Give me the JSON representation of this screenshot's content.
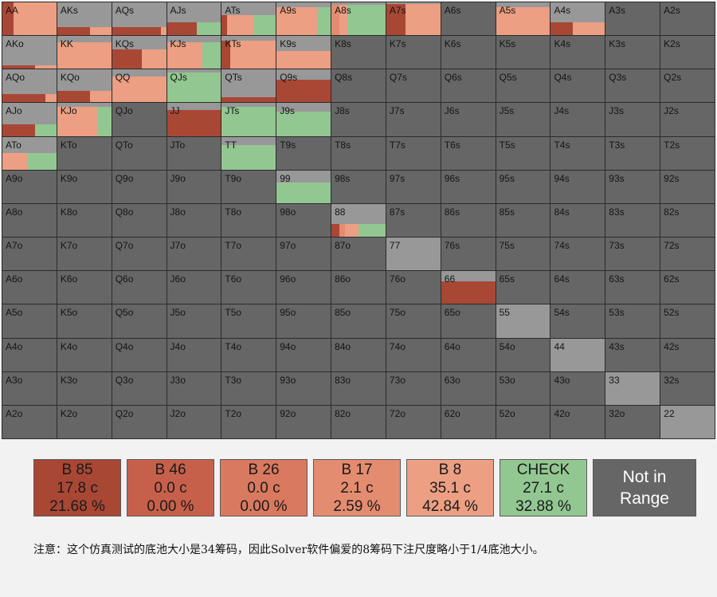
{
  "colors": {
    "B85": "#a94735",
    "B46": "#c7604a",
    "B26": "#d9795f",
    "B17": "#e48c70",
    "B8": "#ec9f82",
    "CHECK": "#92c792",
    "fold": "#989898",
    "empty": "#666666"
  },
  "grid": {
    "rows": [
      [
        "AA",
        "AKs",
        "AQs",
        "AJs",
        "ATs",
        "A9s",
        "A8s",
        "A7s",
        "A6s",
        "A5s",
        "A4s",
        "A3s",
        "A2s"
      ],
      [
        "AKo",
        "KK",
        "KQs",
        "KJs",
        "KTs",
        "K9s",
        "K8s",
        "K7s",
        "K6s",
        "K5s",
        "K4s",
        "K3s",
        "K2s"
      ],
      [
        "AQo",
        "KQo",
        "QQ",
        "QJs",
        "QTs",
        "Q9s",
        "Q8s",
        "Q7s",
        "Q6s",
        "Q5s",
        "Q4s",
        "Q3s",
        "Q2s"
      ],
      [
        "AJo",
        "KJo",
        "QJo",
        "JJ",
        "JTs",
        "J9s",
        "J8s",
        "J7s",
        "J6s",
        "J5s",
        "J4s",
        "J3s",
        "J2s"
      ],
      [
        "ATo",
        "KTo",
        "QTo",
        "JTo",
        "TT",
        "T9s",
        "T8s",
        "T7s",
        "T6s",
        "T5s",
        "T4s",
        "T3s",
        "T2s"
      ],
      [
        "A9o",
        "K9o",
        "Q9o",
        "J9o",
        "T9o",
        "99",
        "98s",
        "97s",
        "96s",
        "95s",
        "94s",
        "93s",
        "92s"
      ],
      [
        "A8o",
        "K8o",
        "Q8o",
        "J8o",
        "T8o",
        "98o",
        "88",
        "87s",
        "86s",
        "85s",
        "84s",
        "83s",
        "82s"
      ],
      [
        "A7o",
        "K7o",
        "Q7o",
        "J7o",
        "T7o",
        "97o",
        "87o",
        "77",
        "76s",
        "75s",
        "74s",
        "73s",
        "72s"
      ],
      [
        "A6o",
        "K6o",
        "Q6o",
        "J6o",
        "T6o",
        "96o",
        "86o",
        "76o",
        "66",
        "65s",
        "64s",
        "63s",
        "62s"
      ],
      [
        "A5o",
        "K5o",
        "Q5o",
        "J5o",
        "T5o",
        "95o",
        "85o",
        "75o",
        "65o",
        "55",
        "54s",
        "53s",
        "52s"
      ],
      [
        "A4o",
        "K4o",
        "Q4o",
        "J4o",
        "T4o",
        "94o",
        "84o",
        "74o",
        "64o",
        "54o",
        "44",
        "43s",
        "42s"
      ],
      [
        "A3o",
        "K3o",
        "Q3o",
        "J3o",
        "T3o",
        "93o",
        "83o",
        "73o",
        "63o",
        "53o",
        "43o",
        "33",
        "32s"
      ],
      [
        "A2o",
        "K2o",
        "Q2o",
        "J2o",
        "T2o",
        "92o",
        "82o",
        "72o",
        "62o",
        "52o",
        "42o",
        "32o",
        "22"
      ]
    ],
    "hands": {
      "AA": {
        "range": 1.0,
        "mix": {
          "B85": 0.2,
          "B8": 0.8
        }
      },
      "AKs": {
        "range": 0.25,
        "mix": {
          "B85": 0.6,
          "B8": 0.4
        }
      },
      "AQs": {
        "range": 0.25,
        "mix": {
          "B85": 0.9,
          "B8": 0.1
        }
      },
      "AJs": {
        "range": 0.4,
        "mix": {
          "B85": 0.55,
          "CHECK": 0.45
        }
      },
      "ATs": {
        "range": 0.6,
        "mix": {
          "B85": 0.1,
          "B8": 0.5,
          "CHECK": 0.4
        }
      },
      "A9s": {
        "range": 0.85,
        "mix": {
          "B8": 0.75,
          "CHECK": 0.25
        }
      },
      "A8s": {
        "range": 0.92,
        "mix": {
          "B8": 0.15,
          "B17": 0.15,
          "CHECK": 0.7
        }
      },
      "A7s": {
        "range": 0.95,
        "mix": {
          "B85": 0.35,
          "B8": 0.65
        }
      },
      "A5s": {
        "range": 0.85,
        "mix": {
          "B8": 1.0
        }
      },
      "A4s": {
        "range": 0.4,
        "mix": {
          "B8": 0.6,
          "B85": 0.4
        }
      },
      "AKo": {
        "range": 0.1,
        "mix": {
          "B85": 0.6,
          "B8": 0.4
        }
      },
      "KK": {
        "range": 0.82,
        "mix": {
          "B8": 1.0
        }
      },
      "KQs": {
        "range": 0.6,
        "mix": {
          "B85": 0.55,
          "B8": 0.45
        }
      },
      "KJs": {
        "range": 0.82,
        "mix": {
          "B8": 0.65,
          "CHECK": 0.35
        }
      },
      "KTs": {
        "range": 0.85,
        "mix": {
          "B85": 0.15,
          "B8": 0.85
        }
      },
      "K9s": {
        "range": 0.55,
        "mix": {
          "B8": 1.0
        }
      },
      "AQo": {
        "range": 0.25,
        "mix": {
          "B85": 0.8,
          "B8": 0.2
        }
      },
      "KQo": {
        "range": 0.35,
        "mix": {
          "B85": 0.6,
          "B8": 0.4
        }
      },
      "QQ": {
        "range": 0.8,
        "mix": {
          "B8": 1.0
        }
      },
      "QJs": {
        "range": 0.9,
        "mix": {
          "CHECK": 1.0
        }
      },
      "QTs": {
        "range": 0.15,
        "mix": {
          "B85": 1.0
        }
      },
      "Q9s": {
        "range": 0.7,
        "mix": {
          "B85": 1.0
        }
      },
      "AJo": {
        "range": 0.35,
        "mix": {
          "B85": 0.6,
          "CHECK": 0.4
        }
      },
      "KJo": {
        "range": 0.9,
        "mix": {
          "B8": 0.75,
          "CHECK": 0.25
        }
      },
      "JJ": {
        "range": 0.8,
        "mix": {
          "B85": 1.0
        }
      },
      "JTs": {
        "range": 0.9,
        "mix": {
          "CHECK": 1.0
        }
      },
      "J9s": {
        "range": 0.75,
        "mix": {
          "CHECK": 1.0
        }
      },
      "ATo": {
        "range": 0.5,
        "mix": {
          "B8": 0.45,
          "CHECK": 0.55
        }
      },
      "TT": {
        "range": 0.75,
        "mix": {
          "CHECK": 1.0
        }
      },
      "99": {
        "range": 0.62,
        "mix": {
          "CHECK": 1.0
        }
      },
      "88": {
        "range": 0.38,
        "mix": {
          "B85": 0.15,
          "B17": 0.1,
          "B8": 0.25,
          "CHECK": 0.5
        }
      },
      "77": {
        "range": 0.0,
        "mix": {}
      },
      "66": {
        "range": 0.7,
        "mix": {
          "B85": 1.0
        }
      },
      "55": {
        "range": 0.0,
        "mix": {}
      },
      "44": {
        "range": 0.0,
        "mix": {}
      },
      "33": {
        "range": 0.0,
        "mix": {}
      },
      "22": {
        "range": 0.0,
        "mix": {}
      }
    }
  },
  "legend": [
    {
      "key": "B85",
      "name": "B 85",
      "chips": "17.8 c",
      "pct": "21.68 %"
    },
    {
      "key": "B46",
      "name": "B 46",
      "chips": "0.0 c",
      "pct": "0.00 %"
    },
    {
      "key": "B26",
      "name": "B 26",
      "chips": "0.0 c",
      "pct": "0.00 %"
    },
    {
      "key": "B17",
      "name": "B 17",
      "chips": "2.1 c",
      "pct": "2.59 %"
    },
    {
      "key": "B8",
      "name": "B 8",
      "chips": "35.1 c",
      "pct": "42.84 %"
    },
    {
      "key": "CHECK",
      "name": "CHECK",
      "chips": "27.1 c",
      "pct": "32.88 %"
    }
  ],
  "not_in_range": {
    "line1": "Not in",
    "line2": "Range"
  },
  "note": "注意：这个仿真测试的底池大小是34筹码，因此Solver软件偏爱的8筹码下注尺度略小于1/4底池大小。"
}
